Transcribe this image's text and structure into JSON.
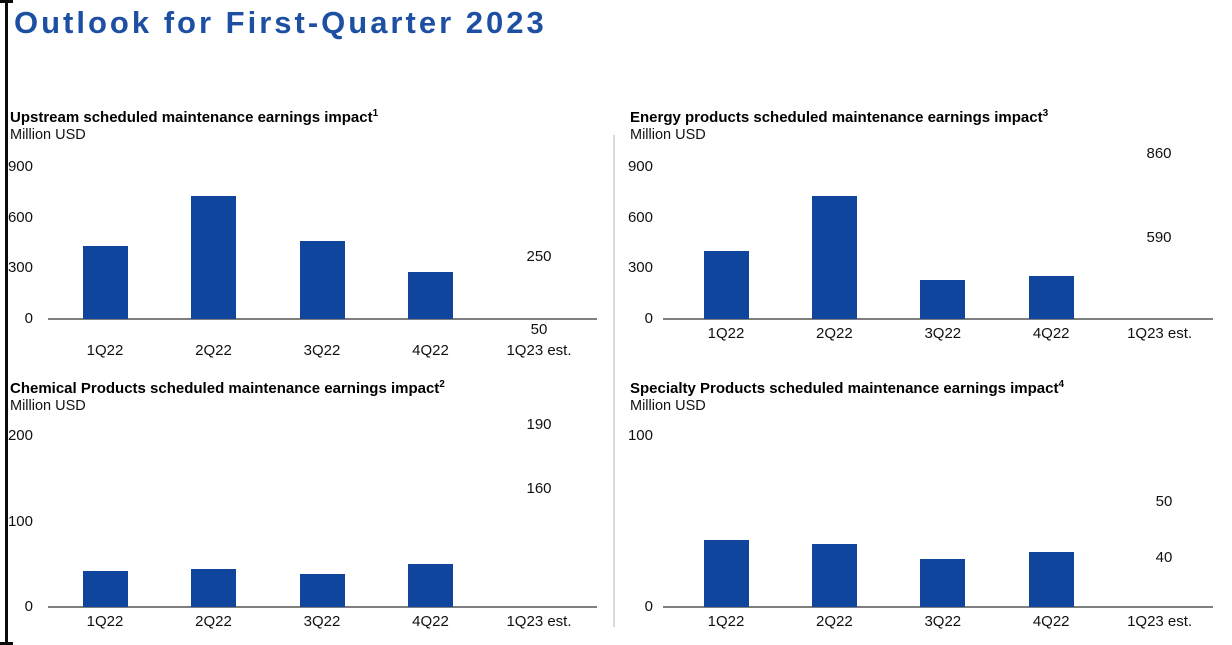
{
  "page": {
    "title": "Outlook for First-Quarter 2023"
  },
  "colors": {
    "title_blue": "#1D4FA3",
    "bar_blue": "#0F459C",
    "axis_gray": "#7F7F7F",
    "divider_gray": "#DADADA",
    "range_marker_black": "#0B0B0B"
  },
  "chart_data": [
    {
      "type": "bar",
      "title": "Upstream scheduled maintenance earnings impact",
      "footnote_marker": "1",
      "ylabel": "Million USD",
      "categories": [
        "1Q22",
        "2Q22",
        "3Q22",
        "4Q22",
        "1Q23 est."
      ],
      "values": [
        430,
        730,
        460,
        280
      ],
      "yticks": [
        0,
        300,
        600,
        900
      ],
      "ylim": [
        0,
        900
      ],
      "grid": false,
      "legend": "none",
      "estimate_range": {
        "high": 250,
        "low": 50,
        "high_label": "250",
        "low_label": "50"
      },
      "bar_color": "#0F459C"
    },
    {
      "type": "bar",
      "title": "Energy products scheduled maintenance earnings impact",
      "footnote_marker": "3",
      "ylabel": "Million USD",
      "categories": [
        "1Q22",
        "2Q22",
        "3Q22",
        "4Q22",
        "1Q23 est."
      ],
      "values": [
        400,
        730,
        230,
        255
      ],
      "yticks": [
        0,
        300,
        600,
        900
      ],
      "ylim": [
        0,
        900
      ],
      "grid": false,
      "legend": "none",
      "estimate_range": {
        "high": 860,
        "low": 590,
        "high_label": "860",
        "low_label": "590"
      },
      "bar_color": "#0F459C"
    },
    {
      "type": "bar",
      "title": "Chemical Products scheduled maintenance earnings impact",
      "footnote_marker": "2",
      "ylabel": "Million USD",
      "categories": [
        "1Q22",
        "2Q22",
        "3Q22",
        "4Q22",
        "1Q23 est."
      ],
      "values": [
        42,
        44,
        39,
        50
      ],
      "yticks": [
        0,
        100,
        200
      ],
      "ylim": [
        0,
        200
      ],
      "grid": false,
      "legend": "none",
      "estimate_range": {
        "high": 190,
        "low": 160,
        "high_label": "190",
        "low_label": "160"
      },
      "bar_color": "#0F459C"
    },
    {
      "type": "bar",
      "title": "Specialty Products scheduled maintenance earnings impact",
      "footnote_marker": "4",
      "ylabel": "Million USD",
      "categories": [
        "1Q22",
        "2Q22",
        "3Q22",
        "4Q22",
        "1Q23 est."
      ],
      "values": [
        39,
        37,
        28,
        32
      ],
      "yticks": [
        0,
        100
      ],
      "ylim": [
        0,
        100
      ],
      "grid": false,
      "legend": "none",
      "estimate_range": {
        "high": 50,
        "low": 40,
        "high_label": "50",
        "low_label": "40"
      },
      "bar_color": "#0F459C"
    }
  ]
}
